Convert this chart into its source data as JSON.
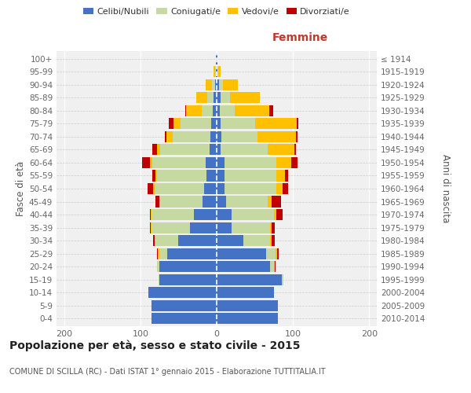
{
  "age_groups": [
    "0-4",
    "5-9",
    "10-14",
    "15-19",
    "20-24",
    "25-29",
    "30-34",
    "35-39",
    "40-44",
    "45-49",
    "50-54",
    "55-59",
    "60-64",
    "65-69",
    "70-74",
    "75-79",
    "80-84",
    "85-89",
    "90-94",
    "95-99",
    "100+"
  ],
  "birth_years": [
    "2010-2014",
    "2005-2009",
    "2000-2004",
    "1995-1999",
    "1990-1994",
    "1985-1989",
    "1980-1984",
    "1975-1979",
    "1970-1974",
    "1965-1969",
    "1960-1964",
    "1955-1959",
    "1950-1954",
    "1945-1949",
    "1940-1944",
    "1935-1939",
    "1930-1934",
    "1925-1929",
    "1920-1924",
    "1915-1919",
    "≤ 1914"
  ],
  "male": {
    "celibi": [
      85,
      85,
      90,
      75,
      75,
      65,
      50,
      35,
      30,
      19,
      16,
      13,
      14,
      9,
      8,
      7,
      5,
      4,
      2,
      1,
      1
    ],
    "coniugati": [
      0,
      0,
      0,
      1,
      3,
      10,
      30,
      50,
      55,
      55,
      65,
      65,
      70,
      65,
      50,
      40,
      15,
      8,
      4,
      1,
      0
    ],
    "vedovi": [
      0,
      0,
      0,
      0,
      0,
      2,
      1,
      1,
      1,
      1,
      2,
      2,
      4,
      4,
      8,
      10,
      20,
      15,
      8,
      2,
      0
    ],
    "divorziati": [
      0,
      0,
      0,
      0,
      0,
      1,
      2,
      2,
      2,
      5,
      8,
      4,
      10,
      6,
      2,
      6,
      1,
      0,
      0,
      0,
      0
    ]
  },
  "female": {
    "nubili": [
      80,
      80,
      75,
      85,
      70,
      65,
      35,
      20,
      20,
      12,
      10,
      10,
      10,
      5,
      6,
      5,
      4,
      5,
      3,
      1,
      1
    ],
    "coniugate": [
      0,
      0,
      0,
      2,
      5,
      12,
      35,
      50,
      55,
      55,
      68,
      68,
      68,
      62,
      48,
      45,
      20,
      12,
      5,
      1,
      0
    ],
    "vedove": [
      0,
      0,
      0,
      0,
      1,
      2,
      2,
      2,
      3,
      5,
      8,
      12,
      20,
      35,
      50,
      55,
      45,
      40,
      20,
      3,
      0
    ],
    "divorziate": [
      0,
      0,
      0,
      0,
      1,
      2,
      4,
      4,
      8,
      12,
      8,
      4,
      8,
      2,
      2,
      2,
      5,
      0,
      0,
      0,
      0
    ]
  },
  "colors": {
    "celibi": "#4472c4",
    "coniugati": "#c5d9a0",
    "vedovi": "#ffc000",
    "divorziati": "#c00000"
  },
  "xlim": [
    -210,
    210
  ],
  "xticks": [
    -200,
    -100,
    0,
    100,
    200
  ],
  "xticklabels": [
    "200",
    "100",
    "0",
    "100",
    "200"
  ],
  "title": "Popolazione per età, sesso e stato civile - 2015",
  "subtitle": "COMUNE DI SCILLA (RC) - Dati ISTAT 1° gennaio 2015 - Elaborazione TUTTITALIA.IT",
  "ylabel_left": "Fasce di età",
  "ylabel_right": "Anni di nascita",
  "femmine_label": "Femmine",
  "bg_color": "#f0f0f0",
  "bar_height": 0.85
}
